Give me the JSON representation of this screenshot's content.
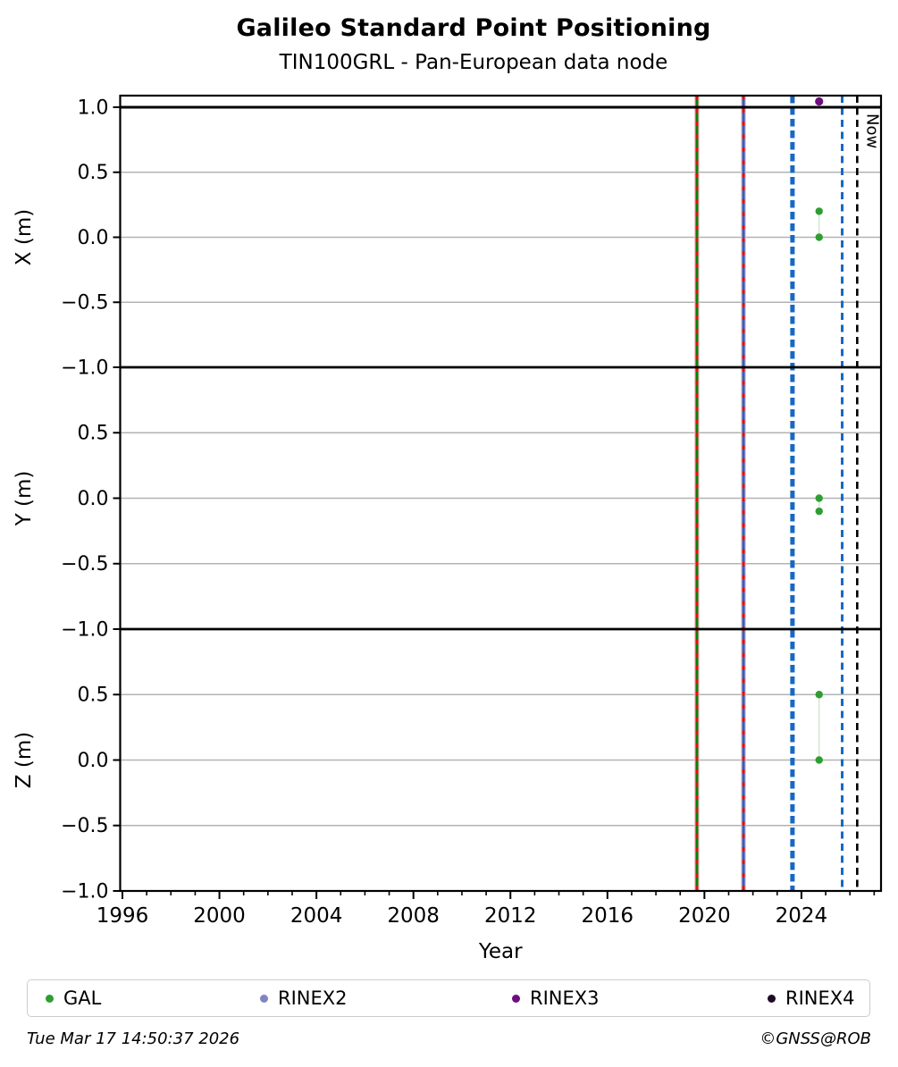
{
  "title": "Galileo Standard Point Positioning",
  "subtitle": "TIN100GRL - Pan-European data node",
  "footer": {
    "timestamp": "Tue Mar 17 14:50:37 2026",
    "credit": "©GNSS@ROB"
  },
  "legend": [
    {
      "label": "GAL",
      "color": "#2e9e32"
    },
    {
      "label": "RINEX2",
      "color": "#7f84c4"
    },
    {
      "label": "RINEX3",
      "color": "#6f0d80"
    },
    {
      "label": "RINEX4",
      "color": "#200a28"
    }
  ],
  "chart_data": {
    "type": "scatter",
    "xlabel": "Year",
    "x_range": [
      1995.74,
      2027.28
    ],
    "x_major_ticks": [
      "1996",
      "2000",
      "2004",
      "2008",
      "2012",
      "2016",
      "2020",
      "2024"
    ],
    "x_minor_tick_step_years": 1,
    "grid": "horizontal-only",
    "grid_color": "#b3b3b3",
    "y_gridline_values": [
      0.5,
      0.0,
      -0.5
    ],
    "panels": [
      {
        "name": "X",
        "ylabel": "X (m)",
        "ylim": [
          -1.0,
          1.0
        ],
        "y_ticks": [
          1.0,
          0.5,
          0.0,
          -0.5,
          -1.0
        ],
        "y_tick_labels": [
          "1.0",
          "0.5",
          "0.0",
          "−0.5",
          "−1.0"
        ],
        "series": {
          "name": "GAL",
          "color": "#2e9e32",
          "points": [
            {
              "x": 2024.73,
              "y": 0.2
            },
            {
              "x": 2024.73,
              "y": 0.0
            }
          ]
        }
      },
      {
        "name": "Y",
        "ylabel": "Y (m)",
        "ylim": [
          -1.0,
          1.0
        ],
        "y_ticks": [
          0.5,
          0.0,
          -0.5,
          -1.0
        ],
        "y_tick_labels": [
          "0.5",
          "0.0",
          "−0.5",
          "−1.0"
        ],
        "series": {
          "name": "GAL",
          "color": "#2e9e32",
          "points": [
            {
              "x": 2024.73,
              "y": 0.0
            },
            {
              "x": 2024.73,
              "y": -0.1
            }
          ]
        }
      },
      {
        "name": "Z",
        "ylabel": "Z (m)",
        "ylim": [
          -1.0,
          1.0
        ],
        "y_ticks": [
          0.5,
          0.0,
          -0.5,
          -1.0
        ],
        "y_tick_labels": [
          "0.5",
          "0.0",
          "−0.5",
          "−1.0"
        ],
        "series": {
          "name": "GAL",
          "color": "#2e9e32",
          "points": [
            {
              "x": 2024.73,
              "y": 0.5
            },
            {
              "x": 2024.73,
              "y": 0.0
            }
          ]
        }
      }
    ],
    "filetype_markers": [
      {
        "series": "RINEX3",
        "x": 2024.73,
        "color": "#6f0d80"
      }
    ],
    "event_lines": [
      {
        "x": 2019.69,
        "style": "solid",
        "color": "#0a7d0a",
        "overlay": "red-dashed"
      },
      {
        "x": 2021.61,
        "style": "solid",
        "color": "#2b62c4",
        "overlay": "red-dashed"
      },
      {
        "x": 2023.63,
        "style": "dashed-thick",
        "color": "#1668c4",
        "overlay": null
      },
      {
        "x": 2025.68,
        "style": "dashed",
        "color": "#1668c4",
        "overlay": null
      },
      {
        "x": 2026.3,
        "style": "dashed",
        "color": "#000000",
        "overlay": null,
        "label": "Now"
      }
    ],
    "overlay_dash_color": "#e01010",
    "connector_color": "#cfe8cf",
    "now_label": "Now",
    "legend_position": "bottom"
  }
}
